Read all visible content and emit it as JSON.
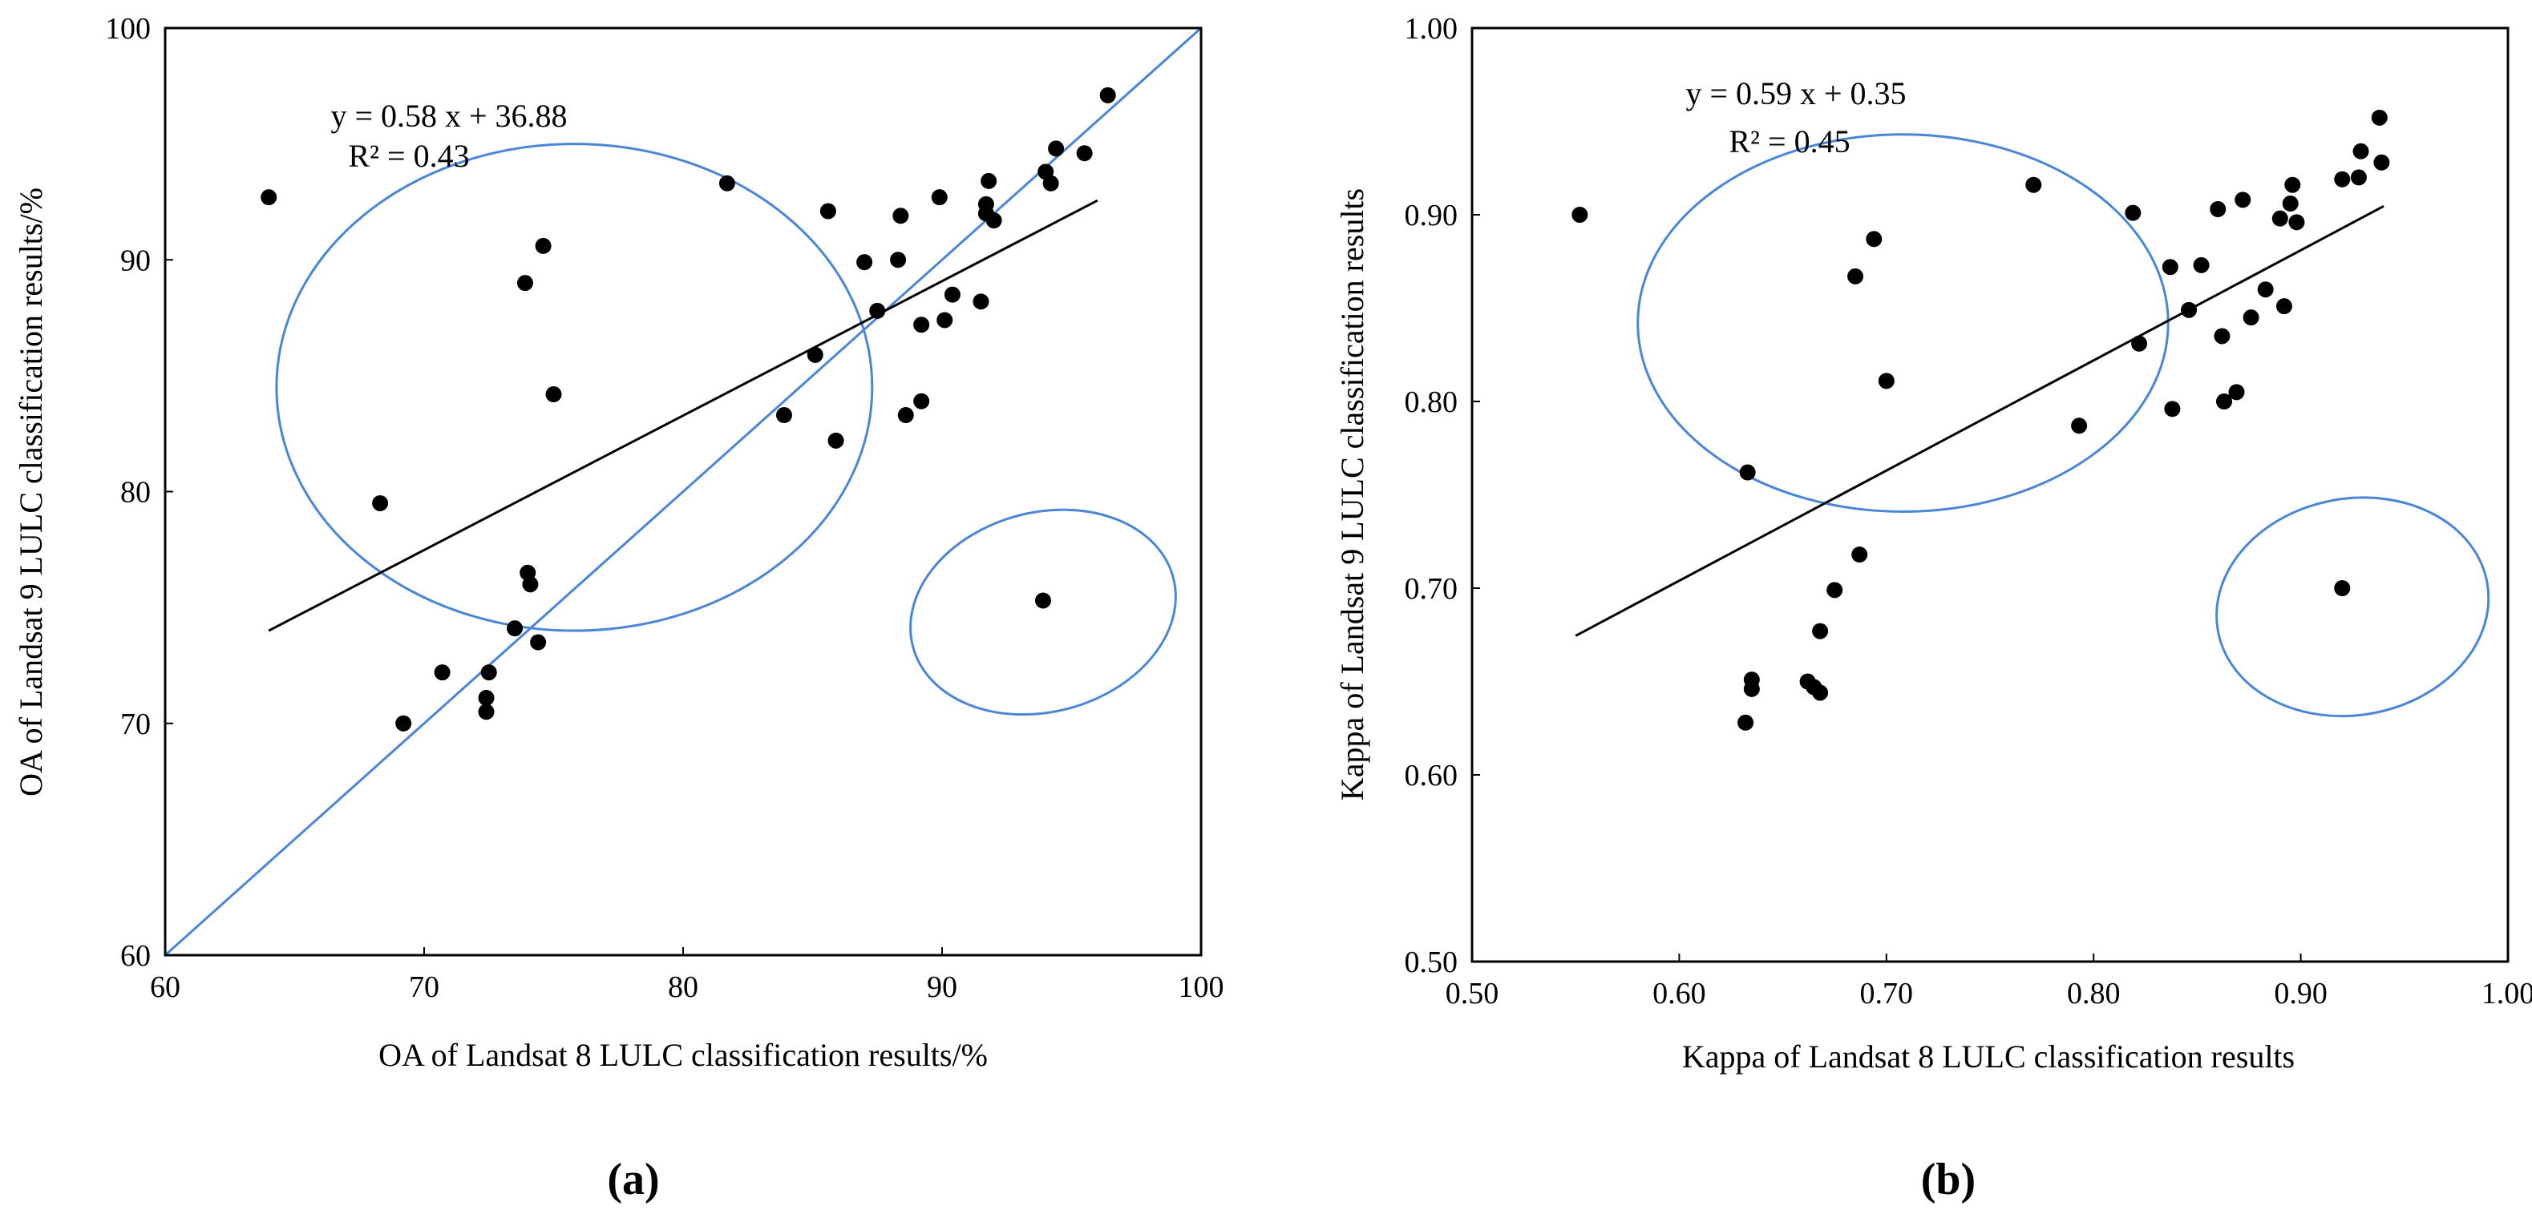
{
  "chart_data": [
    {
      "type": "scatter",
      "panel_label": "(a)",
      "xlabel": "OA of  Landsat 8 LULC classification results/%",
      "ylabel": "OA of  Landsat 9 LULC classification results/%",
      "xlim": [
        60,
        100
      ],
      "ylim": [
        60,
        100
      ],
      "xticks": [
        "60",
        "70",
        "80",
        "90",
        "100"
      ],
      "yticks": [
        "60",
        "70",
        "80",
        "90",
        "100"
      ],
      "equation": "y = 0.58 x + 36.88",
      "r2": "R² = 0.43",
      "fit": {
        "slope": 0.58,
        "intercept": 36.88,
        "x_range": [
          64,
          96
        ]
      },
      "identity_line": true,
      "points": [
        [
          64.0,
          92.7
        ],
        [
          68.3,
          79.5
        ],
        [
          73.9,
          89.0
        ],
        [
          74.6,
          90.6
        ],
        [
          75.0,
          84.2
        ],
        [
          81.7,
          93.3
        ],
        [
          85.6,
          92.1
        ],
        [
          88.4,
          91.9
        ],
        [
          89.9,
          92.7
        ],
        [
          91.7,
          92.4
        ],
        [
          91.8,
          93.4
        ],
        [
          91.7,
          92.0
        ],
        [
          92.0,
          91.7
        ],
        [
          94.4,
          94.8
        ],
        [
          95.5,
          94.6
        ],
        [
          96.4,
          97.1
        ],
        [
          94.0,
          93.8
        ],
        [
          94.2,
          93.3
        ],
        [
          87.0,
          89.9
        ],
        [
          88.3,
          90.0
        ],
        [
          87.5,
          87.8
        ],
        [
          89.2,
          87.2
        ],
        [
          90.1,
          87.4
        ],
        [
          90.4,
          88.5
        ],
        [
          91.5,
          88.2
        ],
        [
          85.1,
          85.9
        ],
        [
          83.9,
          83.3
        ],
        [
          85.9,
          82.2
        ],
        [
          88.6,
          83.3
        ],
        [
          89.2,
          83.9
        ],
        [
          93.9,
          75.3
        ],
        [
          74.0,
          76.5
        ],
        [
          74.1,
          76.0
        ],
        [
          73.5,
          74.1
        ],
        [
          74.4,
          73.5
        ],
        [
          70.7,
          72.2
        ],
        [
          72.5,
          72.2
        ],
        [
          72.4,
          71.1
        ],
        [
          72.4,
          70.5
        ],
        [
          69.2,
          70.0
        ]
      ],
      "ellipses": [
        {
          "cx": 75.8,
          "cy": 84.5,
          "rx": 11.5,
          "ry": 10.5,
          "rotate": 0
        },
        {
          "cx": 93.9,
          "cy": 74.8,
          "rx": 5.2,
          "ry": 4.3,
          "rotate": -15
        }
      ]
    },
    {
      "type": "scatter",
      "panel_label": "(b)",
      "xlabel": "Kappa of  Landsat 8 LULC classification results",
      "ylabel": "Kappa of  Landsat 9 LULC classification results",
      "xlim": [
        0.5,
        1.0
      ],
      "ylim": [
        0.5,
        1.0
      ],
      "xticks": [
        "0.50",
        "0.60",
        "0.70",
        "0.80",
        "0.90",
        "1.00"
      ],
      "yticks": [
        "0.50",
        "0.60",
        "0.70",
        "0.80",
        "0.90",
        "1.00"
      ],
      "equation": "y = 0.59 x + 0.35",
      "r2": "R² = 0.45",
      "fit": {
        "slope": 0.59,
        "intercept": 0.35,
        "x_range": [
          0.55,
          0.94
        ]
      },
      "identity_line": false,
      "points": [
        [
          0.552,
          0.9
        ],
        [
          0.633,
          0.762
        ],
        [
          0.685,
          0.867
        ],
        [
          0.694,
          0.887
        ],
        [
          0.7,
          0.811
        ],
        [
          0.771,
          0.916
        ],
        [
          0.793,
          0.787
        ],
        [
          0.819,
          0.901
        ],
        [
          0.822,
          0.831
        ],
        [
          0.837,
          0.872
        ],
        [
          0.838,
          0.796
        ],
        [
          0.846,
          0.849
        ],
        [
          0.852,
          0.873
        ],
        [
          0.86,
          0.903
        ],
        [
          0.862,
          0.835
        ],
        [
          0.863,
          0.8
        ],
        [
          0.869,
          0.805
        ],
        [
          0.872,
          0.908
        ],
        [
          0.876,
          0.845
        ],
        [
          0.883,
          0.86
        ],
        [
          0.89,
          0.898
        ],
        [
          0.892,
          0.851
        ],
        [
          0.895,
          0.906
        ],
        [
          0.896,
          0.916
        ],
        [
          0.898,
          0.896
        ],
        [
          0.92,
          0.919
        ],
        [
          0.928,
          0.92
        ],
        [
          0.929,
          0.934
        ],
        [
          0.938,
          0.952
        ],
        [
          0.939,
          0.928
        ],
        [
          0.92,
          0.7
        ],
        [
          0.687,
          0.718
        ],
        [
          0.675,
          0.699
        ],
        [
          0.668,
          0.677
        ],
        [
          0.635,
          0.651
        ],
        [
          0.635,
          0.646
        ],
        [
          0.662,
          0.65
        ],
        [
          0.665,
          0.647
        ],
        [
          0.668,
          0.644
        ],
        [
          0.632,
          0.628
        ]
      ],
      "ellipses": [
        {
          "cx": 0.708,
          "cy": 0.842,
          "rx": 0.128,
          "ry": 0.101,
          "rotate": 0
        },
        {
          "cx": 0.925,
          "cy": 0.69,
          "rx": 0.066,
          "ry": 0.058,
          "rotate": -10
        }
      ]
    }
  ]
}
